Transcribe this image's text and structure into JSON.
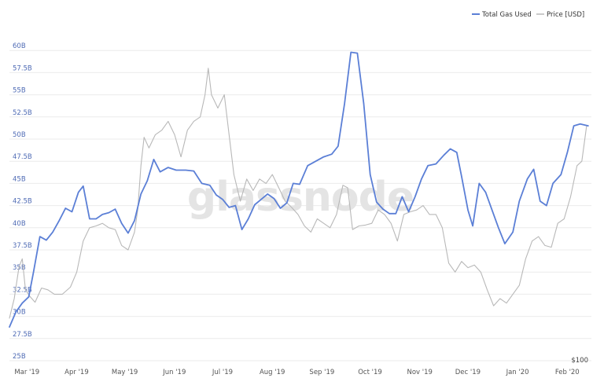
{
  "watermark": "glassnode",
  "legend": [
    {
      "label": "Total Gas Used",
      "color": "#5b7fd6"
    },
    {
      "label": "Price [USD]",
      "color": "#b8b8b8"
    }
  ],
  "price_axis_label": "$100",
  "chart_data": {
    "type": "line",
    "grid": true,
    "legend_position": "top-right",
    "y_left": {
      "ylim": [
        25,
        62.5
      ],
      "tick_values": [
        25,
        27.5,
        30,
        32.5,
        35,
        37.5,
        40,
        42.5,
        45,
        47.5,
        50,
        52.5,
        55,
        57.5,
        60
      ],
      "tick_labels": [
        "25B",
        "27.5B",
        "30B",
        "32.5B",
        "35B",
        "37.5B",
        "40B",
        "42.5B",
        "45B",
        "47.5B",
        "50B",
        "52.5B",
        "55B",
        "57.5B",
        "60B"
      ]
    },
    "y_right": {
      "tick_labels": [
        "$100"
      ],
      "scale": "log"
    },
    "x": {
      "range": [
        "2019-02-22",
        "2020-02-20"
      ],
      "tick_dates": [
        "2019-03-01",
        "2019-04-01",
        "2019-05-01",
        "2019-06-01",
        "2019-07-01",
        "2019-08-01",
        "2019-09-01",
        "2019-10-01",
        "2019-11-01",
        "2019-12-01",
        "2020-01-01",
        "2020-02-01"
      ],
      "tick_labels": [
        "Mar '19",
        "Apr '19",
        "May '19",
        "Jun '19",
        "Jul '19",
        "Aug '19",
        "Sep '19",
        "Oct '19",
        "Nov '19",
        "Dec '19",
        "Jan '20",
        "Feb '20"
      ]
    },
    "series": [
      {
        "name": "Total Gas Used",
        "color": "#5b7fd6",
        "axis": "left",
        "points": [
          [
            "2019-02-22",
            28.8
          ],
          [
            "2019-02-26",
            30.5
          ],
          [
            "2019-03-02",
            31.5
          ],
          [
            "2019-03-06",
            32.2
          ],
          [
            "2019-03-09",
            35
          ],
          [
            "2019-03-13",
            39
          ],
          [
            "2019-03-17",
            38.6
          ],
          [
            "2019-03-21",
            39.5
          ],
          [
            "2019-03-25",
            40.8
          ],
          [
            "2019-03-29",
            42.2
          ],
          [
            "2019-04-02",
            41.8
          ],
          [
            "2019-04-06",
            44
          ],
          [
            "2019-04-09",
            44.7
          ],
          [
            "2019-04-13",
            41
          ],
          [
            "2019-04-17",
            41
          ],
          [
            "2019-04-21",
            41.5
          ],
          [
            "2019-04-25",
            41.7
          ],
          [
            "2019-04-29",
            42.1
          ],
          [
            "2019-05-03",
            40.5
          ],
          [
            "2019-05-07",
            39.4
          ],
          [
            "2019-05-11",
            40.8
          ],
          [
            "2019-05-15",
            43.8
          ],
          [
            "2019-05-19",
            45.3
          ],
          [
            "2019-05-23",
            47.7
          ],
          [
            "2019-05-27",
            46.3
          ],
          [
            "2019-06-01",
            46.8
          ],
          [
            "2019-06-06",
            46.5
          ],
          [
            "2019-06-12",
            46.5
          ],
          [
            "2019-06-17",
            46.4
          ],
          [
            "2019-06-22",
            45
          ],
          [
            "2019-06-27",
            44.8
          ],
          [
            "2019-07-01",
            43.7
          ],
          [
            "2019-07-05",
            43.2
          ],
          [
            "2019-07-09",
            42.3
          ],
          [
            "2019-07-13",
            42.5
          ],
          [
            "2019-07-17",
            39.8
          ],
          [
            "2019-07-21",
            41
          ],
          [
            "2019-07-25",
            42.6
          ],
          [
            "2019-07-29",
            43.2
          ],
          [
            "2019-08-02",
            43.8
          ],
          [
            "2019-08-06",
            43.3
          ],
          [
            "2019-08-10",
            42.2
          ],
          [
            "2019-08-14",
            42.8
          ],
          [
            "2019-08-18",
            45
          ],
          [
            "2019-08-22",
            44.9
          ],
          [
            "2019-08-27",
            47
          ],
          [
            "2019-09-01",
            47.5
          ],
          [
            "2019-09-06",
            48
          ],
          [
            "2019-09-11",
            48.3
          ],
          [
            "2019-09-15",
            49.2
          ],
          [
            "2019-09-19",
            54
          ],
          [
            "2019-09-23",
            59.8
          ],
          [
            "2019-09-27",
            59.7
          ],
          [
            "2019-10-01",
            54
          ],
          [
            "2019-10-05",
            46
          ],
          [
            "2019-10-09",
            42.9
          ],
          [
            "2019-10-13",
            42.1
          ],
          [
            "2019-10-17",
            41.6
          ],
          [
            "2019-10-21",
            41.6
          ],
          [
            "2019-10-25",
            43.5
          ],
          [
            "2019-10-29",
            41.8
          ],
          [
            "2019-11-02",
            43.5
          ],
          [
            "2019-11-06",
            45.5
          ],
          [
            "2019-11-10",
            47
          ],
          [
            "2019-11-15",
            47.2
          ],
          [
            "2019-11-20",
            48.2
          ],
          [
            "2019-11-24",
            48.9
          ],
          [
            "2019-11-28",
            48.5
          ],
          [
            "2019-12-01",
            45.8
          ],
          [
            "2019-12-05",
            42
          ],
          [
            "2019-12-08",
            40.2
          ],
          [
            "2019-12-12",
            45
          ],
          [
            "2019-12-16",
            44
          ],
          [
            "2019-12-20",
            42
          ],
          [
            "2019-12-24",
            40
          ],
          [
            "2019-12-28",
            38.2
          ],
          [
            "2020-01-02",
            39.5
          ],
          [
            "2020-01-06",
            43
          ],
          [
            "2020-01-11",
            45.5
          ],
          [
            "2020-01-15",
            46.6
          ],
          [
            "2020-01-19",
            43
          ],
          [
            "2020-01-23",
            42.5
          ],
          [
            "2020-01-27",
            45
          ],
          [
            "2020-02-01",
            46
          ],
          [
            "2020-02-05",
            48.5
          ],
          [
            "2020-02-09",
            51.5
          ],
          [
            "2020-02-13",
            51.7
          ],
          [
            "2020-02-18",
            51.5
          ]
        ]
      },
      {
        "name": "Price [USD]",
        "color": "#b8b8b8",
        "axis": "right",
        "points": [
          [
            "2019-02-22",
            29.8
          ],
          [
            "2019-02-25",
            32
          ],
          [
            "2019-02-28",
            35.6
          ],
          [
            "2019-03-02",
            36.5
          ],
          [
            "2019-03-04",
            33
          ],
          [
            "2019-03-07",
            32.2
          ],
          [
            "2019-03-10",
            31.6
          ],
          [
            "2019-03-14",
            33.2
          ],
          [
            "2019-03-18",
            33
          ],
          [
            "2019-03-22",
            32.5
          ],
          [
            "2019-03-27",
            32.5
          ],
          [
            "2019-04-01",
            33.3
          ],
          [
            "2019-04-05",
            35
          ],
          [
            "2019-04-09",
            38.5
          ],
          [
            "2019-04-13",
            40
          ],
          [
            "2019-04-17",
            40.2
          ],
          [
            "2019-04-21",
            40.5
          ],
          [
            "2019-04-25",
            40
          ],
          [
            "2019-04-29",
            39.8
          ],
          [
            "2019-05-03",
            38
          ],
          [
            "2019-05-07",
            37.5
          ],
          [
            "2019-05-11",
            39.5
          ],
          [
            "2019-05-13",
            42
          ],
          [
            "2019-05-15",
            47
          ],
          [
            "2019-05-17",
            50.2
          ],
          [
            "2019-05-20",
            49
          ],
          [
            "2019-05-24",
            50.5
          ],
          [
            "2019-05-28",
            51
          ],
          [
            "2019-06-01",
            52
          ],
          [
            "2019-06-05",
            50.5
          ],
          [
            "2019-06-09",
            48
          ],
          [
            "2019-06-13",
            51
          ],
          [
            "2019-06-17",
            52
          ],
          [
            "2019-06-21",
            52.5
          ],
          [
            "2019-06-24",
            55
          ],
          [
            "2019-06-26",
            58
          ],
          [
            "2019-06-28",
            55
          ],
          [
            "2019-07-02",
            53.5
          ],
          [
            "2019-07-06",
            55
          ],
          [
            "2019-07-09",
            50.5
          ],
          [
            "2019-07-12",
            46
          ],
          [
            "2019-07-16",
            43
          ],
          [
            "2019-07-20",
            45.5
          ],
          [
            "2019-07-24",
            44.2
          ],
          [
            "2019-07-28",
            45.5
          ],
          [
            "2019-08-01",
            45
          ],
          [
            "2019-08-05",
            46
          ],
          [
            "2019-08-09",
            44.5
          ],
          [
            "2019-08-13",
            43
          ],
          [
            "2019-08-17",
            42.3
          ],
          [
            "2019-08-21",
            41.5
          ],
          [
            "2019-08-25",
            40.2
          ],
          [
            "2019-08-29",
            39.5
          ],
          [
            "2019-09-02",
            41
          ],
          [
            "2019-09-06",
            40.5
          ],
          [
            "2019-09-10",
            40
          ],
          [
            "2019-09-14",
            41.5
          ],
          [
            "2019-09-18",
            44.8
          ],
          [
            "2019-09-21",
            44.5
          ],
          [
            "2019-09-24",
            39.8
          ],
          [
            "2019-09-28",
            40.2
          ],
          [
            "2019-10-02",
            40.3
          ],
          [
            "2019-10-06",
            40.5
          ],
          [
            "2019-10-10",
            42
          ],
          [
            "2019-10-14",
            41.5
          ],
          [
            "2019-10-18",
            40.5
          ],
          [
            "2019-10-22",
            38.5
          ],
          [
            "2019-10-26",
            41.5
          ],
          [
            "2019-10-30",
            41.8
          ],
          [
            "2019-11-03",
            42
          ],
          [
            "2019-11-07",
            42.5
          ],
          [
            "2019-11-11",
            41.5
          ],
          [
            "2019-11-15",
            41.5
          ],
          [
            "2019-11-19",
            40
          ],
          [
            "2019-11-23",
            36
          ],
          [
            "2019-11-27",
            35
          ],
          [
            "2019-12-01",
            36.2
          ],
          [
            "2019-12-05",
            35.5
          ],
          [
            "2019-12-09",
            35.8
          ],
          [
            "2019-12-13",
            35
          ],
          [
            "2019-12-17",
            33
          ],
          [
            "2019-12-21",
            31.2
          ],
          [
            "2019-12-25",
            32
          ],
          [
            "2019-12-29",
            31.5
          ],
          [
            "2020-01-02",
            32.5
          ],
          [
            "2020-01-06",
            33.5
          ],
          [
            "2020-01-10",
            36.5
          ],
          [
            "2020-01-14",
            38.5
          ],
          [
            "2020-01-18",
            39
          ],
          [
            "2020-01-22",
            38
          ],
          [
            "2020-01-26",
            37.8
          ],
          [
            "2020-01-30",
            40.5
          ],
          [
            "2020-02-03",
            41
          ],
          [
            "2020-02-07",
            43.5
          ],
          [
            "2020-02-11",
            47
          ],
          [
            "2020-02-14",
            47.5
          ],
          [
            "2020-02-17",
            51.5
          ]
        ]
      }
    ]
  }
}
